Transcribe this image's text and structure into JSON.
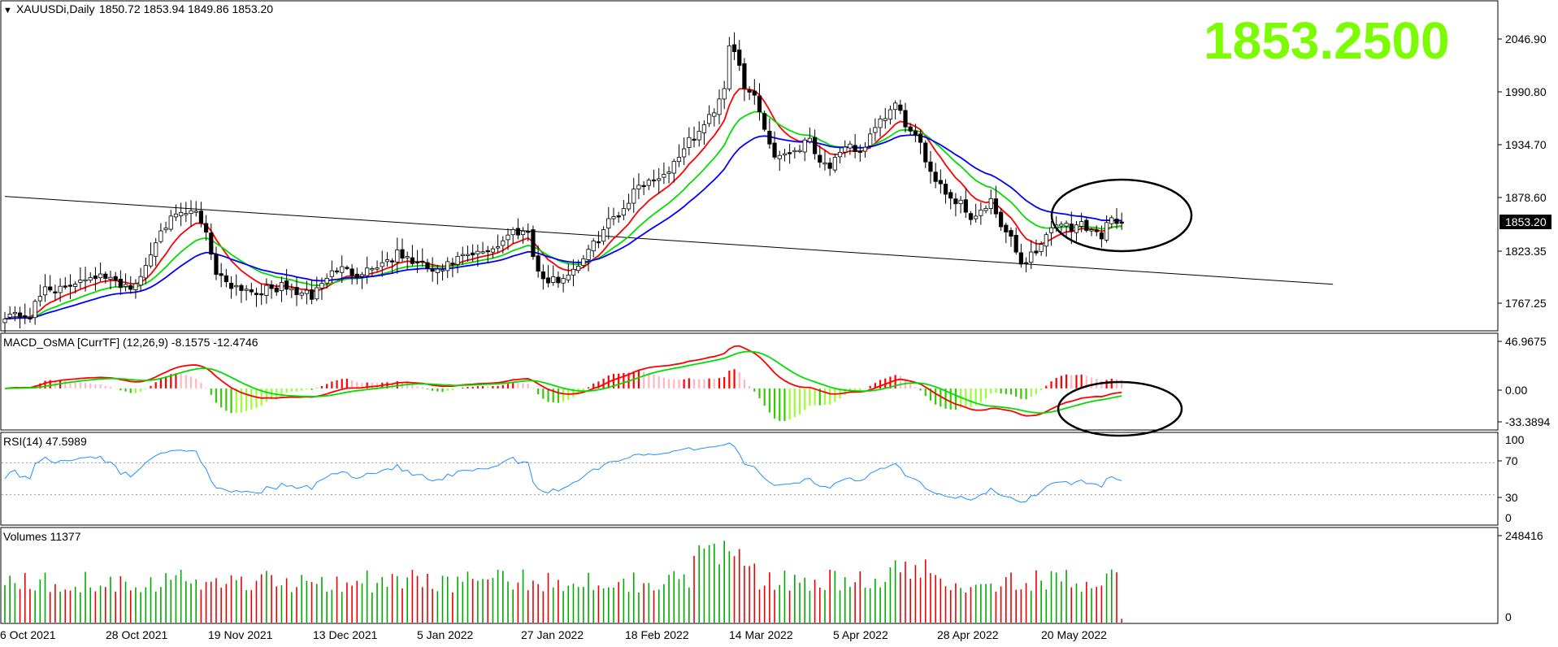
{
  "colors": {
    "background": "#ffffff",
    "frame": "#000000",
    "candle_up_fill": "#ffffff",
    "candle_down_fill": "#000000",
    "ma_fast": "#ff0000",
    "ma_mid": "#00dd00",
    "ma_slow": "#0000ff",
    "trendline": "#000000",
    "big_price": "#7cfc00",
    "price_tag_bg": "#000000",
    "price_tag_fg": "#ffffff",
    "osma_up_strong": "#ff0000",
    "osma_up_weak": "#ffb6c1",
    "osma_down_strong": "#33cc00",
    "osma_down_weak": "#99ff33",
    "rsi_line": "#1e90ff",
    "rsi_levels": "#999999",
    "vol_up": "#00aa00",
    "vol_down": "#ee0000"
  },
  "main_panel": {
    "title_arrow": "▼",
    "symbol": "XAUUSDi,Daily",
    "ohlc": "1850.72 1853.94 1849.86 1853.20",
    "big_price": "1853.2500",
    "price_tag": "1853.20",
    "y_ticks": [
      "2046.90",
      "1990.80",
      "1934.70",
      "1878.60",
      "1823.35",
      "1767.25"
    ]
  },
  "macd_panel": {
    "title": "MACD_OsMA [CurrTF] (12,26,9) -8.1575 -12.4746",
    "y_ticks": [
      "46.9675",
      "0.00",
      "-33.3894"
    ]
  },
  "rsi_panel": {
    "title": "RSI(14) 47.5989",
    "y_ticks": [
      "100",
      "70",
      "30",
      "0"
    ]
  },
  "volume_panel": {
    "title": "Volumes 11377",
    "y_ticks": [
      "248416",
      "0"
    ]
  },
  "x_axis": {
    "labels": [
      "6 Oct 2021",
      "28 Oct 2021",
      "19 Nov 2021",
      "13 Dec 2021",
      "5 Jan 2022",
      "27 Jan 2022",
      "18 Feb 2022",
      "14 Mar 2022",
      "5 Apr 2022",
      "28 Apr 2022",
      "20 May 2022"
    ]
  },
  "chart_data": {
    "type": "candlestick",
    "symbol": "XAUUSDi",
    "timeframe": "Daily",
    "x_start": "6 Oct 2021",
    "x_end": "27 May 2022",
    "last_ohlc": {
      "open": 1850.72,
      "high": 1853.94,
      "low": 1849.86,
      "close": 1853.2
    },
    "ylim": [
      1740,
      2085
    ],
    "closes_anchor": [
      [
        0,
        1756
      ],
      [
        5,
        1755
      ],
      [
        8,
        1785
      ],
      [
        12,
        1782
      ],
      [
        15,
        1795
      ],
      [
        18,
        1798
      ],
      [
        22,
        1790
      ],
      [
        26,
        1785
      ],
      [
        29,
        1820
      ],
      [
        31,
        1850
      ],
      [
        35,
        1862
      ],
      [
        38,
        1865
      ],
      [
        40,
        1845
      ],
      [
        42,
        1800
      ],
      [
        45,
        1788
      ],
      [
        50,
        1780
      ],
      [
        55,
        1785
      ],
      [
        58,
        1780
      ],
      [
        61,
        1775
      ],
      [
        63,
        1790
      ],
      [
        66,
        1805
      ],
      [
        70,
        1800
      ],
      [
        74,
        1808
      ],
      [
        78,
        1820
      ],
      [
        82,
        1810
      ],
      [
        86,
        1800
      ],
      [
        90,
        1815
      ],
      [
        94,
        1820
      ],
      [
        98,
        1830
      ],
      [
        101,
        1845
      ],
      [
        104,
        1845
      ],
      [
        106,
        1800
      ],
      [
        108,
        1790
      ],
      [
        111,
        1795
      ],
      [
        114,
        1810
      ],
      [
        117,
        1830
      ],
      [
        120,
        1855
      ],
      [
        123,
        1870
      ],
      [
        126,
        1895
      ],
      [
        129,
        1900
      ],
      [
        132,
        1910
      ],
      [
        135,
        1935
      ],
      [
        138,
        1950
      ],
      [
        141,
        1975
      ],
      [
        143,
        2000
      ],
      [
        144,
        2045
      ],
      [
        145,
        2040
      ],
      [
        147,
        1995
      ],
      [
        149,
        1990
      ],
      [
        151,
        1955
      ],
      [
        153,
        1925
      ],
      [
        156,
        1930
      ],
      [
        158,
        1935
      ],
      [
        160,
        1945
      ],
      [
        162,
        1920
      ],
      [
        164,
        1915
      ],
      [
        166,
        1925
      ],
      [
        168,
        1935
      ],
      [
        170,
        1930
      ],
      [
        172,
        1945
      ],
      [
        174,
        1960
      ],
      [
        177,
        1980
      ],
      [
        180,
        1950
      ],
      [
        182,
        1935
      ],
      [
        184,
        1910
      ],
      [
        186,
        1895
      ],
      [
        188,
        1880
      ],
      [
        190,
        1875
      ],
      [
        192,
        1860
      ],
      [
        194,
        1865
      ],
      [
        196,
        1875
      ],
      [
        198,
        1850
      ],
      [
        200,
        1835
      ],
      [
        202,
        1810
      ],
      [
        204,
        1820
      ],
      [
        206,
        1830
      ],
      [
        208,
        1850
      ],
      [
        210,
        1855
      ],
      [
        212,
        1845
      ],
      [
        214,
        1855
      ],
      [
        216,
        1845
      ],
      [
        218,
        1840
      ],
      [
        220,
        1862
      ],
      [
        222,
        1853
      ]
    ],
    "overlays": [
      {
        "kind": "trendline",
        "from": {
          "bar": 0,
          "price": 1882
        },
        "to": {
          "bar": 264,
          "price": 1788
        }
      },
      {
        "kind": "ellipse",
        "panel": "price"
      },
      {
        "kind": "ellipse",
        "panel": "macd"
      }
    ],
    "indicators": {
      "moving_averages": [
        "fast",
        "mid",
        "slow"
      ],
      "macd_osma": {
        "params": [
          12,
          26,
          9
        ],
        "macd": -8.1575,
        "signal": -12.4746,
        "ylim": [
          -40,
          52
        ]
      },
      "rsi": {
        "period": 14,
        "value": 47.5989,
        "levels": [
          70,
          30
        ],
        "ylim": [
          0,
          100
        ]
      },
      "volume": {
        "value": 11377,
        "ylim": [
          0,
          265000
        ]
      }
    }
  }
}
